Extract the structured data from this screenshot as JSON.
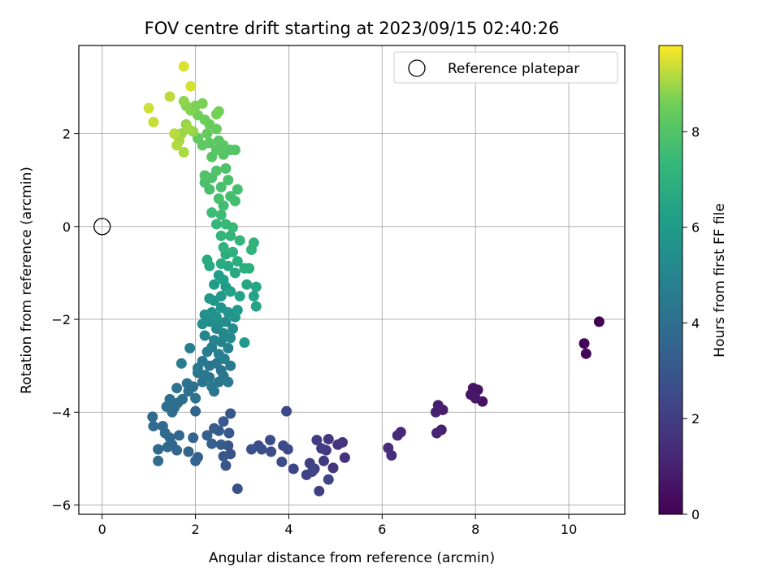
{
  "chart_data": {
    "type": "scatter",
    "title": "FOV centre drift starting at 2023/09/15 02:40:26",
    "xlabel": "Angular distance from reference (arcmin)",
    "ylabel": "Rotation from reference (arcmin)",
    "colorbar_label": "Hours from first FF file",
    "colormap": "viridis",
    "xlim": [
      -0.5,
      11.2
    ],
    "ylim": [
      -6.2,
      3.9
    ],
    "color_range": [
      0,
      9.8
    ],
    "xticks": [
      0,
      2,
      4,
      6,
      8,
      10
    ],
    "yticks": [
      -6,
      -4,
      -2,
      0,
      2
    ],
    "colorbar_ticks": [
      0,
      2,
      4,
      6,
      8
    ],
    "grid": true,
    "legend_position": "top-right",
    "reference": {
      "name": "Reference platepar",
      "x": 0,
      "y": 0
    },
    "points": [
      [
        10.65,
        -2.05,
        0.0
      ],
      [
        10.33,
        -2.52,
        0.1
      ],
      [
        10.37,
        -2.74,
        0.2
      ],
      [
        8.15,
        -3.77,
        0.5
      ],
      [
        8.05,
        -3.52,
        0.55
      ],
      [
        7.95,
        -3.48,
        0.6
      ],
      [
        7.9,
        -3.62,
        0.65
      ],
      [
        8.0,
        -3.7,
        0.7
      ],
      [
        7.3,
        -3.95,
        0.9
      ],
      [
        7.2,
        -3.85,
        0.95
      ],
      [
        7.15,
        -4.0,
        1.0
      ],
      [
        7.27,
        -4.38,
        1.05
      ],
      [
        7.17,
        -4.45,
        1.1
      ],
      [
        6.4,
        -4.43,
        1.25
      ],
      [
        6.33,
        -4.5,
        1.3
      ],
      [
        6.13,
        -4.77,
        1.4
      ],
      [
        6.2,
        -4.93,
        1.45
      ],
      [
        5.2,
        -4.98,
        1.6
      ],
      [
        5.15,
        -4.65,
        1.65
      ],
      [
        5.05,
        -4.7,
        1.7
      ],
      [
        4.95,
        -5.2,
        1.75
      ],
      [
        4.85,
        -4.58,
        1.8
      ],
      [
        4.8,
        -4.82,
        1.85
      ],
      [
        4.75,
        -5.05,
        1.9
      ],
      [
        4.7,
        -4.78,
        1.95
      ],
      [
        4.6,
        -4.6,
        2.0
      ],
      [
        4.65,
        -5.7,
        2.05
      ],
      [
        4.55,
        -5.22,
        2.1
      ],
      [
        4.45,
        -5.1,
        2.15
      ],
      [
        4.38,
        -5.35,
        2.2
      ],
      [
        4.5,
        -5.28,
        2.25
      ],
      [
        4.85,
        -5.45,
        2.3
      ],
      [
        4.1,
        -5.22,
        2.35
      ],
      [
        3.95,
        -3.98,
        2.4
      ],
      [
        3.98,
        -4.8,
        2.45
      ],
      [
        3.88,
        -4.72,
        2.5
      ],
      [
        3.85,
        -5.07,
        2.55
      ],
      [
        3.6,
        -4.6,
        2.6
      ],
      [
        3.62,
        -4.85,
        2.62
      ],
      [
        3.35,
        -4.72,
        2.65
      ],
      [
        3.42,
        -4.8,
        2.7
      ],
      [
        3.2,
        -4.8,
        2.75
      ],
      [
        2.9,
        -5.65,
        2.8
      ],
      [
        2.75,
        -4.9,
        2.85
      ],
      [
        2.7,
        -4.72,
        2.9
      ],
      [
        2.65,
        -5.15,
        2.95
      ],
      [
        2.6,
        -4.95,
        3.0
      ],
      [
        2.75,
        -4.03,
        3.05
      ],
      [
        2.72,
        -4.45,
        3.1
      ],
      [
        2.6,
        -4.2,
        3.15
      ],
      [
        2.55,
        -4.7,
        3.2
      ],
      [
        2.5,
        -4.4,
        3.22
      ],
      [
        2.4,
        -4.35,
        3.25
      ],
      [
        2.35,
        -4.68,
        3.3
      ],
      [
        2.25,
        -4.5,
        3.35
      ],
      [
        2.05,
        -4.97,
        3.4
      ],
      [
        2.0,
        -5.05,
        3.45
      ],
      [
        1.95,
        -4.55,
        3.5
      ],
      [
        1.85,
        -4.85,
        3.52
      ],
      [
        2.0,
        -3.98,
        3.55
      ],
      [
        1.65,
        -4.5,
        3.6
      ],
      [
        1.6,
        -4.82,
        3.62
      ],
      [
        1.5,
        -4.7,
        3.65
      ],
      [
        1.45,
        -4.55,
        3.7
      ],
      [
        1.4,
        -4.75,
        3.72
      ],
      [
        1.35,
        -4.45,
        3.75
      ],
      [
        1.3,
        -4.3,
        3.78
      ],
      [
        1.2,
        -4.8,
        3.8
      ],
      [
        1.2,
        -5.05,
        3.82
      ],
      [
        1.1,
        -4.3,
        3.85
      ],
      [
        1.08,
        -4.1,
        3.88
      ],
      [
        1.5,
        -4.0,
        3.9
      ],
      [
        1.55,
        -3.9,
        3.92
      ],
      [
        1.62,
        -3.8,
        3.95
      ],
      [
        1.38,
        -3.88,
        3.98
      ],
      [
        1.45,
        -3.72,
        4.0
      ],
      [
        1.72,
        -3.72,
        4.02
      ],
      [
        1.85,
        -3.55,
        4.05
      ],
      [
        2.0,
        -3.7,
        4.08
      ],
      [
        1.95,
        -3.45,
        4.1
      ],
      [
        1.82,
        -3.38,
        4.12
      ],
      [
        1.6,
        -3.48,
        4.15
      ],
      [
        2.05,
        -3.15,
        4.18
      ],
      [
        2.15,
        -3.35,
        4.2
      ],
      [
        2.3,
        -3.25,
        4.22
      ],
      [
        2.4,
        -3.55,
        4.25
      ],
      [
        2.5,
        -3.35,
        4.28
      ],
      [
        2.55,
        -3.1,
        4.3
      ],
      [
        2.45,
        -2.95,
        4.32
      ],
      [
        2.3,
        -3.0,
        4.35
      ],
      [
        2.15,
        -2.9,
        4.38
      ],
      [
        2.6,
        -3.22,
        4.4
      ],
      [
        2.7,
        -3.35,
        4.42
      ],
      [
        2.35,
        -3.45,
        4.45
      ],
      [
        2.2,
        -3.2,
        4.48
      ],
      [
        2.05,
        -3.05,
        4.5
      ],
      [
        2.75,
        -3.0,
        4.52
      ],
      [
        1.7,
        -2.95,
        4.6
      ],
      [
        1.88,
        -2.62,
        4.65
      ],
      [
        2.25,
        -2.7,
        4.7
      ],
      [
        2.35,
        -2.6,
        4.75
      ],
      [
        2.5,
        -2.75,
        4.8
      ],
      [
        2.62,
        -2.85,
        4.85
      ],
      [
        2.7,
        -2.62,
        4.9
      ],
      [
        2.55,
        -2.48,
        4.95
      ],
      [
        2.4,
        -2.45,
        5.0
      ],
      [
        2.2,
        -2.35,
        5.05
      ],
      [
        2.45,
        -2.2,
        5.1
      ],
      [
        2.6,
        -2.3,
        5.15
      ],
      [
        2.75,
        -2.4,
        5.2
      ],
      [
        2.8,
        -2.2,
        5.25
      ],
      [
        2.65,
        -2.05,
        5.3
      ],
      [
        2.5,
        -2.1,
        5.35
      ],
      [
        2.3,
        -2.05,
        5.4
      ],
      [
        2.15,
        -2.1,
        5.45
      ],
      [
        2.2,
        -1.9,
        5.5
      ],
      [
        2.35,
        -1.85,
        5.55
      ],
      [
        2.45,
        -1.95,
        5.6
      ],
      [
        2.55,
        -1.75,
        5.65
      ],
      [
        2.7,
        -1.85,
        5.7
      ],
      [
        2.85,
        -1.95,
        5.75
      ],
      [
        2.4,
        -1.6,
        5.8
      ],
      [
        2.3,
        -1.55,
        5.85
      ],
      [
        2.55,
        -1.5,
        5.9
      ],
      [
        3.05,
        -2.5,
        5.95
      ],
      [
        2.9,
        -1.8,
        6.0
      ],
      [
        2.65,
        -1.3,
        6.05
      ],
      [
        2.4,
        -1.25,
        6.1
      ],
      [
        2.5,
        -1.05,
        6.15
      ],
      [
        2.6,
        -1.15,
        6.2
      ],
      [
        2.75,
        -1.4,
        6.25
      ],
      [
        2.95,
        -1.5,
        6.3
      ],
      [
        3.25,
        -1.5,
        6.35
      ],
      [
        3.3,
        -1.72,
        6.4
      ],
      [
        3.3,
        -1.3,
        6.45
      ],
      [
        3.1,
        -1.25,
        6.5
      ],
      [
        2.85,
        -1.0,
        6.55
      ],
      [
        2.7,
        -0.85,
        6.6
      ],
      [
        2.3,
        -0.85,
        6.65
      ],
      [
        2.25,
        -0.72,
        6.7
      ],
      [
        2.55,
        -0.8,
        6.75
      ],
      [
        2.65,
        -0.6,
        6.8
      ],
      [
        2.9,
        -0.75,
        6.85
      ],
      [
        3.05,
        -0.9,
        6.9
      ],
      [
        3.15,
        -0.9,
        6.95
      ],
      [
        2.8,
        -0.55,
        7.0
      ],
      [
        2.6,
        -0.45,
        7.05
      ],
      [
        3.25,
        -0.35,
        7.1
      ],
      [
        3.2,
        -0.5,
        7.15
      ],
      [
        2.95,
        -0.3,
        7.2
      ],
      [
        2.75,
        -0.2,
        7.25
      ],
      [
        2.55,
        -0.2,
        7.3
      ],
      [
        2.45,
        0.05,
        7.35
      ],
      [
        2.65,
        0.05,
        7.4
      ],
      [
        2.8,
        -0.02,
        7.45
      ],
      [
        2.55,
        0.25,
        7.5
      ],
      [
        2.35,
        0.3,
        7.55
      ],
      [
        2.6,
        0.45,
        7.6
      ],
      [
        2.85,
        0.55,
        7.65
      ],
      [
        2.9,
        0.8,
        7.7
      ],
      [
        2.75,
        0.65,
        7.72
      ],
      [
        2.5,
        0.6,
        7.75
      ],
      [
        2.3,
        0.8,
        7.78
      ],
      [
        2.2,
        0.95,
        7.8
      ],
      [
        2.55,
        0.85,
        7.82
      ],
      [
        2.7,
        1.0,
        7.85
      ],
      [
        2.65,
        1.25,
        7.88
      ],
      [
        2.35,
        1.05,
        7.9
      ],
      [
        2.2,
        1.1,
        7.92
      ],
      [
        2.45,
        1.2,
        7.95
      ],
      [
        2.85,
        1.65,
        8.0
      ],
      [
        2.75,
        1.65,
        8.02
      ],
      [
        2.6,
        1.55,
        8.05
      ],
      [
        2.35,
        1.5,
        8.1
      ],
      [
        2.45,
        1.65,
        8.12
      ],
      [
        2.5,
        1.85,
        8.15
      ],
      [
        2.6,
        1.75,
        8.18
      ],
      [
        2.3,
        1.8,
        8.2
      ],
      [
        2.15,
        1.75,
        8.25
      ],
      [
        2.05,
        1.9,
        8.3
      ],
      [
        2.25,
        2.0,
        8.35
      ],
      [
        2.45,
        2.1,
        8.4
      ],
      [
        2.3,
        2.2,
        8.45
      ],
      [
        2.2,
        2.3,
        8.5
      ],
      [
        2.05,
        2.4,
        8.55
      ],
      [
        2.5,
        2.48,
        8.6
      ],
      [
        2.45,
        2.42,
        8.62
      ],
      [
        2.15,
        2.65,
        8.65
      ],
      [
        2.0,
        2.6,
        8.7
      ],
      [
        1.9,
        2.5,
        8.75
      ],
      [
        1.8,
        2.6,
        8.8
      ],
      [
        1.75,
        2.7,
        8.85
      ],
      [
        1.95,
        2.05,
        8.9
      ],
      [
        1.8,
        2.2,
        8.92
      ],
      [
        1.7,
        2.0,
        8.95
      ],
      [
        1.85,
        2.1,
        9.0
      ],
      [
        1.65,
        1.85,
        9.05
      ],
      [
        1.75,
        1.6,
        9.1
      ],
      [
        1.6,
        1.75,
        9.15
      ],
      [
        1.55,
        2.0,
        9.2
      ],
      [
        1.45,
        2.8,
        9.25
      ],
      [
        1.1,
        2.25,
        9.35
      ],
      [
        1.0,
        2.55,
        9.4
      ],
      [
        1.9,
        3.02,
        9.45
      ],
      [
        1.75,
        3.45,
        9.5
      ]
    ]
  }
}
